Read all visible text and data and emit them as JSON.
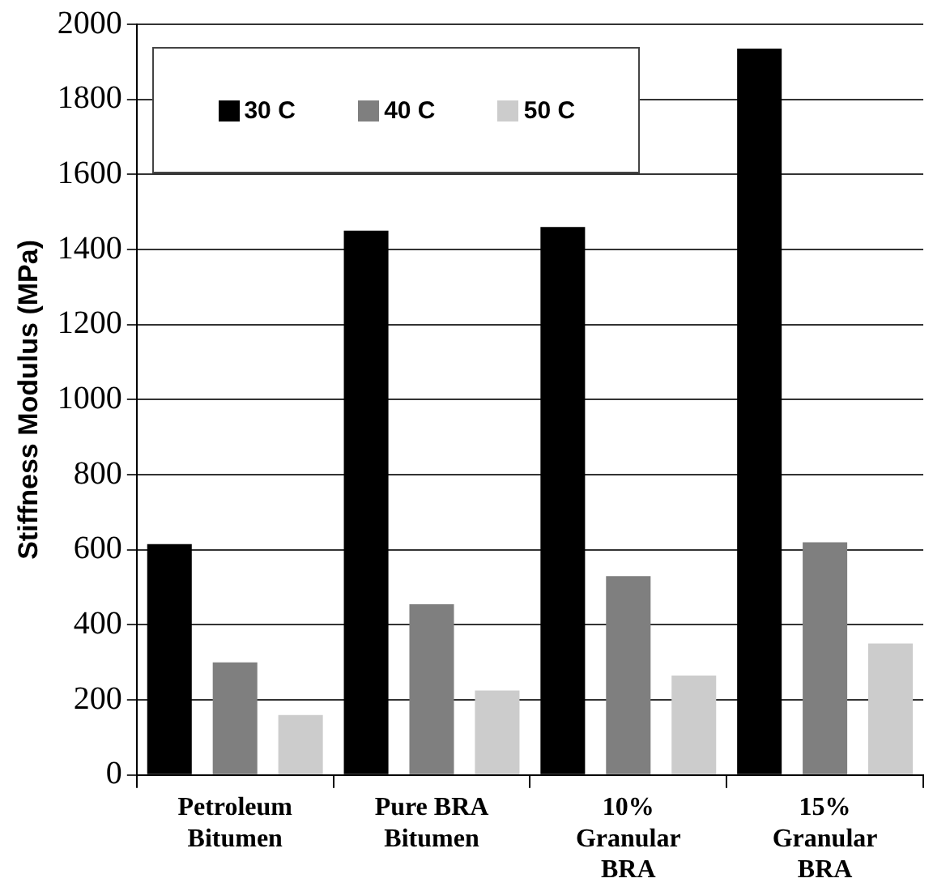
{
  "chart_data": {
    "type": "bar",
    "ylabel": "Stiffness Modulus (MPa)",
    "categories": [
      "Petroleum\nBitumen",
      "Pure BRA\nBitumen",
      "10%\nGranular\nBRA",
      "15%\nGranular\nBRA"
    ],
    "series": [
      {
        "name": "30 C",
        "color": "#000000",
        "values": [
          615,
          1450,
          1460,
          1935
        ]
      },
      {
        "name": "40 C",
        "color": "#7f7f7f",
        "values": [
          300,
          455,
          530,
          620
        ]
      },
      {
        "name": "50 C",
        "color": "#cccccc",
        "values": [
          160,
          225,
          265,
          350
        ]
      }
    ],
    "ylim": [
      0,
      2000
    ],
    "yticks": [
      0,
      200,
      400,
      600,
      800,
      1000,
      1200,
      1400,
      1600,
      1800,
      2000
    ],
    "grid": "y",
    "legend": "top left"
  }
}
